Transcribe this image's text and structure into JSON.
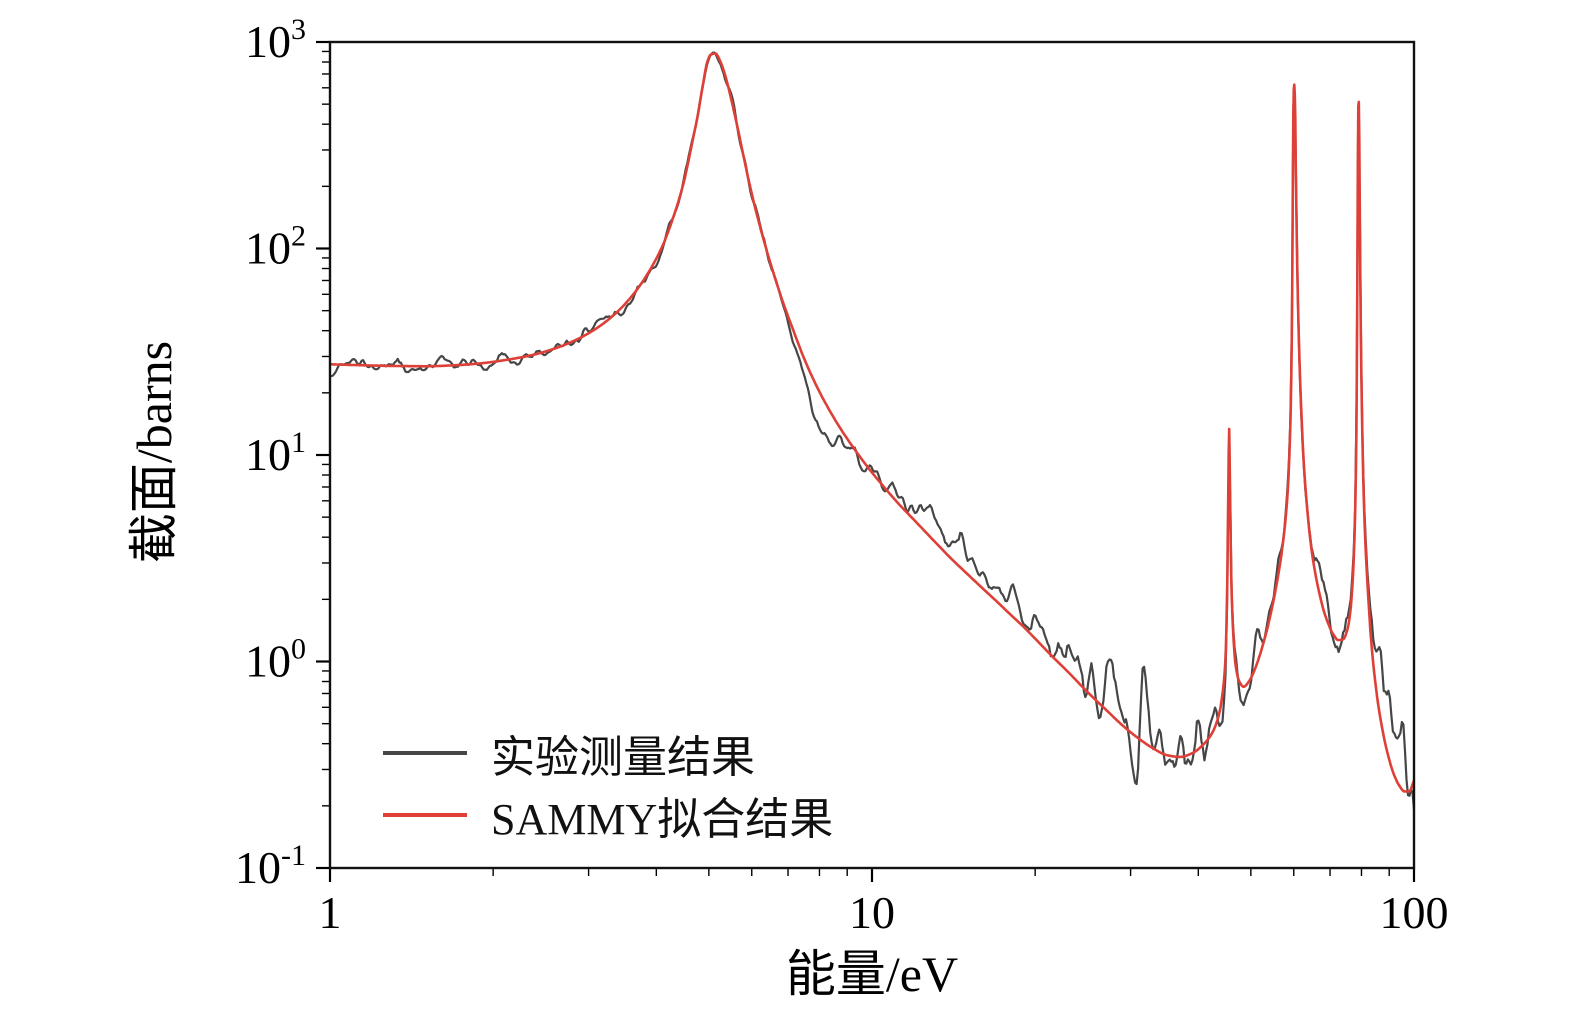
{
  "chart_data": {
    "type": "line",
    "title": "",
    "xlabel": "能量/eV",
    "ylabel": "截面/barns",
    "x_scale": "log",
    "y_scale": "log",
    "xlim": [
      1,
      100
    ],
    "ylim": [
      0.1,
      1000
    ],
    "x_ticks": [
      1,
      10,
      100
    ],
    "y_tick_exponents": [
      -1,
      0,
      1,
      2,
      3
    ],
    "grid": false,
    "frame": true,
    "legend_position": "lower left",
    "resonance_peaks": [
      {
        "energy_eV": 5.1,
        "peak_barns": 880
      },
      {
        "energy_eV": 45.6,
        "peak_barns": 13.5
      },
      {
        "energy_eV": 60.0,
        "peak_barns": 625
      },
      {
        "energy_eV": 79.0,
        "peak_barns": 530
      }
    ],
    "series": [
      {
        "name": "实验测量结果",
        "type": "noisy-line",
        "color": "#464646",
        "line_width": 2.2,
        "follows": "fit",
        "noise": {
          "points": 720,
          "seed": 11,
          "base_sigma": 0.025,
          "scale_sigma": 0.12,
          "power": 0.55,
          "max_sigma": 0.4,
          "coarse_nodes": 96
        },
        "deviations": [
          {
            "E": 8.05,
            "factor": 0.66,
            "log_width": 0.035
          },
          {
            "E": 14.5,
            "factor": 1.22,
            "log_width": 0.1
          },
          {
            "E": 27.0,
            "factor": 1.15,
            "log_width": 0.2
          },
          {
            "E": 95.0,
            "factor": 1.7,
            "log_width": 0.045
          }
        ]
      },
      {
        "name": "SAMMY拟合结果",
        "type": "line",
        "color": "#de4038",
        "line_width": 2.6,
        "points": [
          [
            1.0,
            27.5
          ],
          [
            1.15,
            27.2
          ],
          [
            1.3,
            27.0
          ],
          [
            1.5,
            26.9
          ],
          [
            1.7,
            27.2
          ],
          [
            1.9,
            27.8
          ],
          [
            2.1,
            28.8
          ],
          [
            2.35,
            30.4
          ],
          [
            2.6,
            32.8
          ],
          [
            2.85,
            36.2
          ],
          [
            3.1,
            41.0
          ],
          [
            3.35,
            48.0
          ],
          [
            3.6,
            58.5
          ],
          [
            3.85,
            75.0
          ],
          [
            4.1,
            102
          ],
          [
            4.3,
            142
          ],
          [
            4.5,
            212
          ],
          [
            4.65,
            318
          ],
          [
            4.78,
            455
          ],
          [
            4.88,
            630
          ],
          [
            4.96,
            790
          ],
          [
            5.04,
            868
          ],
          [
            5.14,
            880
          ],
          [
            5.25,
            805
          ],
          [
            5.38,
            665
          ],
          [
            5.52,
            505
          ],
          [
            5.68,
            360
          ],
          [
            5.85,
            248
          ],
          [
            6.05,
            168
          ],
          [
            6.3,
            112
          ],
          [
            6.55,
            79
          ],
          [
            6.85,
            55
          ],
          [
            7.15,
            40.5
          ],
          [
            7.5,
            29.2
          ],
          [
            7.9,
            21.6
          ],
          [
            8.3,
            16.9
          ],
          [
            8.8,
            13.1
          ],
          [
            9.3,
            10.6
          ],
          [
            9.9,
            8.5
          ],
          [
            10.5,
            7.05
          ],
          [
            11.2,
            5.8
          ],
          [
            12.0,
            4.8
          ],
          [
            13.0,
            3.85
          ],
          [
            14.0,
            3.15
          ],
          [
            15.0,
            2.65
          ],
          [
            16.0,
            2.26
          ],
          [
            17.0,
            1.95
          ],
          [
            18.0,
            1.69
          ],
          [
            19.0,
            1.48
          ],
          [
            20.0,
            1.29
          ],
          [
            21.5,
            1.06
          ],
          [
            23.0,
            0.89
          ],
          [
            25.0,
            0.71
          ],
          [
            27.0,
            0.585
          ],
          [
            29.0,
            0.49
          ],
          [
            31.0,
            0.425
          ],
          [
            33.0,
            0.38
          ],
          [
            35.0,
            0.352
          ],
          [
            37.0,
            0.345
          ],
          [
            39.0,
            0.36
          ],
          [
            41.0,
            0.4
          ],
          [
            42.5,
            0.455
          ],
          [
            43.6,
            0.545
          ],
          [
            44.4,
            0.72
          ],
          [
            44.9,
            1.05
          ],
          [
            45.2,
            2.2
          ],
          [
            45.45,
            7.0
          ],
          [
            45.6,
            13.5
          ],
          [
            45.75,
            7.5
          ],
          [
            46.0,
            2.6
          ],
          [
            46.4,
            1.35
          ],
          [
            46.9,
            0.95
          ],
          [
            47.6,
            0.8
          ],
          [
            48.5,
            0.755
          ],
          [
            49.5,
            0.795
          ],
          [
            50.8,
            0.91
          ],
          [
            52.2,
            1.12
          ],
          [
            53.6,
            1.44
          ],
          [
            55.0,
            1.95
          ],
          [
            56.4,
            2.8
          ],
          [
            57.6,
            4.2
          ],
          [
            58.5,
            6.8
          ],
          [
            59.1,
            13.0
          ],
          [
            59.45,
            30.0
          ],
          [
            59.65,
            85.0
          ],
          [
            59.8,
            270
          ],
          [
            59.95,
            555
          ],
          [
            60.1,
            625
          ],
          [
            60.3,
            520
          ],
          [
            60.55,
            235
          ],
          [
            60.9,
            82
          ],
          [
            61.4,
            32
          ],
          [
            62.0,
            15.5
          ],
          [
            62.8,
            8.1
          ],
          [
            63.8,
            4.85
          ],
          [
            65.0,
            3.2
          ],
          [
            66.5,
            2.3
          ],
          [
            68.0,
            1.8
          ],
          [
            69.5,
            1.52
          ],
          [
            71.0,
            1.35
          ],
          [
            72.5,
            1.27
          ],
          [
            74.0,
            1.28
          ],
          [
            75.3,
            1.42
          ],
          [
            76.3,
            1.74
          ],
          [
            77.1,
            2.5
          ],
          [
            77.7,
            4.2
          ],
          [
            78.1,
            8.0
          ],
          [
            78.4,
            20
          ],
          [
            78.6,
            62
          ],
          [
            78.75,
            205
          ],
          [
            78.9,
            465
          ],
          [
            79.05,
            530
          ],
          [
            79.2,
            428
          ],
          [
            79.4,
            180
          ],
          [
            79.65,
            60
          ],
          [
            80.0,
            22
          ],
          [
            80.5,
            9.0
          ],
          [
            81.2,
            4.2
          ],
          [
            82.2,
            2.2
          ],
          [
            83.4,
            1.25
          ],
          [
            84.8,
            0.8
          ],
          [
            86.4,
            0.56
          ],
          [
            88.0,
            0.43
          ],
          [
            90.0,
            0.335
          ],
          [
            92.0,
            0.28
          ],
          [
            94.0,
            0.25
          ],
          [
            96.0,
            0.235
          ],
          [
            98.0,
            0.235
          ],
          [
            100.0,
            0.265
          ]
        ]
      }
    ]
  }
}
